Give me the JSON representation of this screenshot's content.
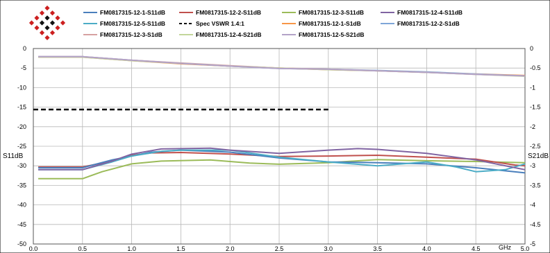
{
  "colors": {
    "s11_1": "#4a7fbc",
    "s11_2": "#c0504d",
    "s11_3": "#9bbb59",
    "s11_4": "#8064a2",
    "s11_5": "#4bacc6",
    "spec": "#000000",
    "s21_1": "#f79646",
    "s21_2": "#7ea6d8",
    "s21_3": "#d6a0a0",
    "s21_4": "#c3d69b",
    "s21_5": "#b3a2c7",
    "logo_red": "#cc1f1f",
    "logo_black": "#111111"
  },
  "logo": {
    "icon": "diamond-mosaic-logo"
  },
  "chart_data": {
    "type": "line",
    "xlabel": "GHz",
    "ylabel_left": "S11dB",
    "ylabel_right": "S21dB",
    "xlim": [
      0.0,
      5.0
    ],
    "ylim_left": [
      -50,
      0
    ],
    "ylim_right": [
      -5,
      0
    ],
    "x_ticks": [
      "0.0",
      "0.5",
      "1.0",
      "1.5",
      "2.0",
      "2.5",
      "3.0",
      "3.5",
      "4.0",
      "4.5",
      "5.0"
    ],
    "y_left_ticks": [
      "0",
      "-5",
      "-10",
      "-15",
      "-20",
      "-25",
      "-30",
      "-35",
      "-40",
      "-45",
      "-50"
    ],
    "y_right_ticks": [
      "0",
      "-0.5",
      "-1",
      "-1.5",
      "-2",
      "-2.5",
      "-3",
      "-3.5",
      "-4",
      "-4.5",
      "-5"
    ],
    "grid": true,
    "legend_position": "top",
    "series": [
      {
        "name": "FM0817315-12-1-S11dB",
        "axis": "left",
        "color_key": "s11_1",
        "x": [
          0.05,
          0.5,
          0.8,
          1.0,
          1.2,
          1.5,
          2.0,
          2.5,
          3.0,
          3.5,
          4.0,
          4.5,
          5.0
        ],
        "y": [
          -30.5,
          -30.5,
          -28.5,
          -27.5,
          -26.5,
          -26.0,
          -26.5,
          -28.0,
          -29.0,
          -29.2,
          -29.5,
          -30.5,
          -31.8
        ]
      },
      {
        "name": "FM0817315-12-2-S11dB",
        "axis": "left",
        "color_key": "s11_2",
        "x": [
          0.05,
          0.5,
          0.8,
          1.0,
          1.2,
          1.5,
          2.0,
          2.5,
          3.0,
          3.5,
          4.0,
          4.5,
          4.9,
          5.0
        ],
        "y": [
          -30.3,
          -30.3,
          -28.8,
          -27.3,
          -26.7,
          -26.6,
          -27.0,
          -27.6,
          -27.5,
          -27.3,
          -27.8,
          -28.3,
          -29.8,
          -30.0
        ]
      },
      {
        "name": "FM0817315-12-3-S11dB",
        "axis": "left",
        "color_key": "s11_3",
        "x": [
          0.05,
          0.5,
          0.7,
          1.0,
          1.3,
          1.8,
          2.2,
          2.5,
          3.0,
          3.5,
          4.0,
          4.5,
          5.0
        ],
        "y": [
          -33.3,
          -33.3,
          -31.5,
          -29.5,
          -28.8,
          -28.5,
          -29.3,
          -29.6,
          -29.2,
          -28.4,
          -28.7,
          -28.9,
          -29.2
        ]
      },
      {
        "name": "FM0817315-12-4-S11dB",
        "axis": "left",
        "color_key": "s11_4",
        "x": [
          0.05,
          0.5,
          0.8,
          1.0,
          1.3,
          1.8,
          2.0,
          2.5,
          3.0,
          3.3,
          3.5,
          4.0,
          4.5,
          4.9,
          5.0
        ],
        "y": [
          -31.0,
          -31.0,
          -28.8,
          -27.0,
          -25.7,
          -25.5,
          -26.0,
          -26.8,
          -26.0,
          -25.6,
          -25.8,
          -26.8,
          -28.5,
          -30.5,
          -31.0
        ]
      },
      {
        "name": "FM0817315-12-5-S11dB",
        "axis": "left",
        "color_key": "s11_5",
        "x": [
          0.05,
          0.5,
          0.8,
          1.0,
          1.3,
          1.5,
          2.0,
          2.5,
          3.0,
          3.5,
          4.0,
          4.3,
          4.5,
          4.8,
          5.0
        ],
        "y": [
          -31.0,
          -31.0,
          -29.0,
          -27.5,
          -26.3,
          -26.0,
          -26.0,
          -27.8,
          -29.0,
          -30.0,
          -29.0,
          -30.3,
          -31.5,
          -31.0,
          -29.5
        ]
      },
      {
        "name": "Spec VSWR 1.4:1",
        "axis": "left",
        "color_key": "spec",
        "dashed": true,
        "x": [
          0.0,
          3.0
        ],
        "y": [
          -15.6,
          -15.6
        ]
      },
      {
        "name": "FM0817315-12-1-S1dB",
        "axis": "right",
        "color_key": "s21_1",
        "x": [
          0.05,
          0.5,
          1.0,
          1.5,
          2.0,
          2.5,
          3.0,
          3.5,
          4.0,
          4.5,
          5.0
        ],
        "y": [
          -0.22,
          -0.22,
          -0.31,
          -0.39,
          -0.45,
          -0.5,
          -0.54,
          -0.57,
          -0.61,
          -0.65,
          -0.69
        ]
      },
      {
        "name": "FM0817315-12-2-S1dB",
        "axis": "right",
        "color_key": "s21_2",
        "x": [
          0.05,
          0.5,
          1.0,
          1.5,
          2.0,
          2.5,
          3.0,
          3.5,
          4.0,
          4.5,
          5.0
        ],
        "y": [
          -0.21,
          -0.21,
          -0.3,
          -0.38,
          -0.45,
          -0.51,
          -0.53,
          -0.56,
          -0.6,
          -0.65,
          -0.7
        ]
      },
      {
        "name": "FM0817315-12-3-S1dB",
        "axis": "right",
        "color_key": "s21_3",
        "x": [
          0.05,
          0.5,
          1.0,
          1.5,
          2.0,
          2.5,
          3.0,
          3.5,
          4.0,
          4.5,
          5.0
        ],
        "y": [
          -0.21,
          -0.21,
          -0.3,
          -0.37,
          -0.44,
          -0.5,
          -0.53,
          -0.57,
          -0.61,
          -0.66,
          -0.7
        ]
      },
      {
        "name": "FM0817315-12-4-S21dB",
        "axis": "right",
        "color_key": "s21_4",
        "x": [
          0.05,
          0.5,
          1.0,
          1.5,
          2.0,
          2.5,
          3.0,
          3.5,
          4.0,
          4.5,
          5.0
        ],
        "y": [
          -0.22,
          -0.22,
          -0.31,
          -0.38,
          -0.45,
          -0.5,
          -0.54,
          -0.57,
          -0.61,
          -0.66,
          -0.71
        ]
      },
      {
        "name": "FM0817315-12-5-S21dB",
        "axis": "right",
        "color_key": "s21_5",
        "x": [
          0.05,
          0.5,
          1.0,
          1.5,
          2.0,
          2.5,
          3.0,
          3.5,
          4.0,
          4.5,
          5.0
        ],
        "y": [
          -0.21,
          -0.21,
          -0.3,
          -0.38,
          -0.45,
          -0.51,
          -0.53,
          -0.57,
          -0.61,
          -0.66,
          -0.7
        ]
      }
    ]
  }
}
